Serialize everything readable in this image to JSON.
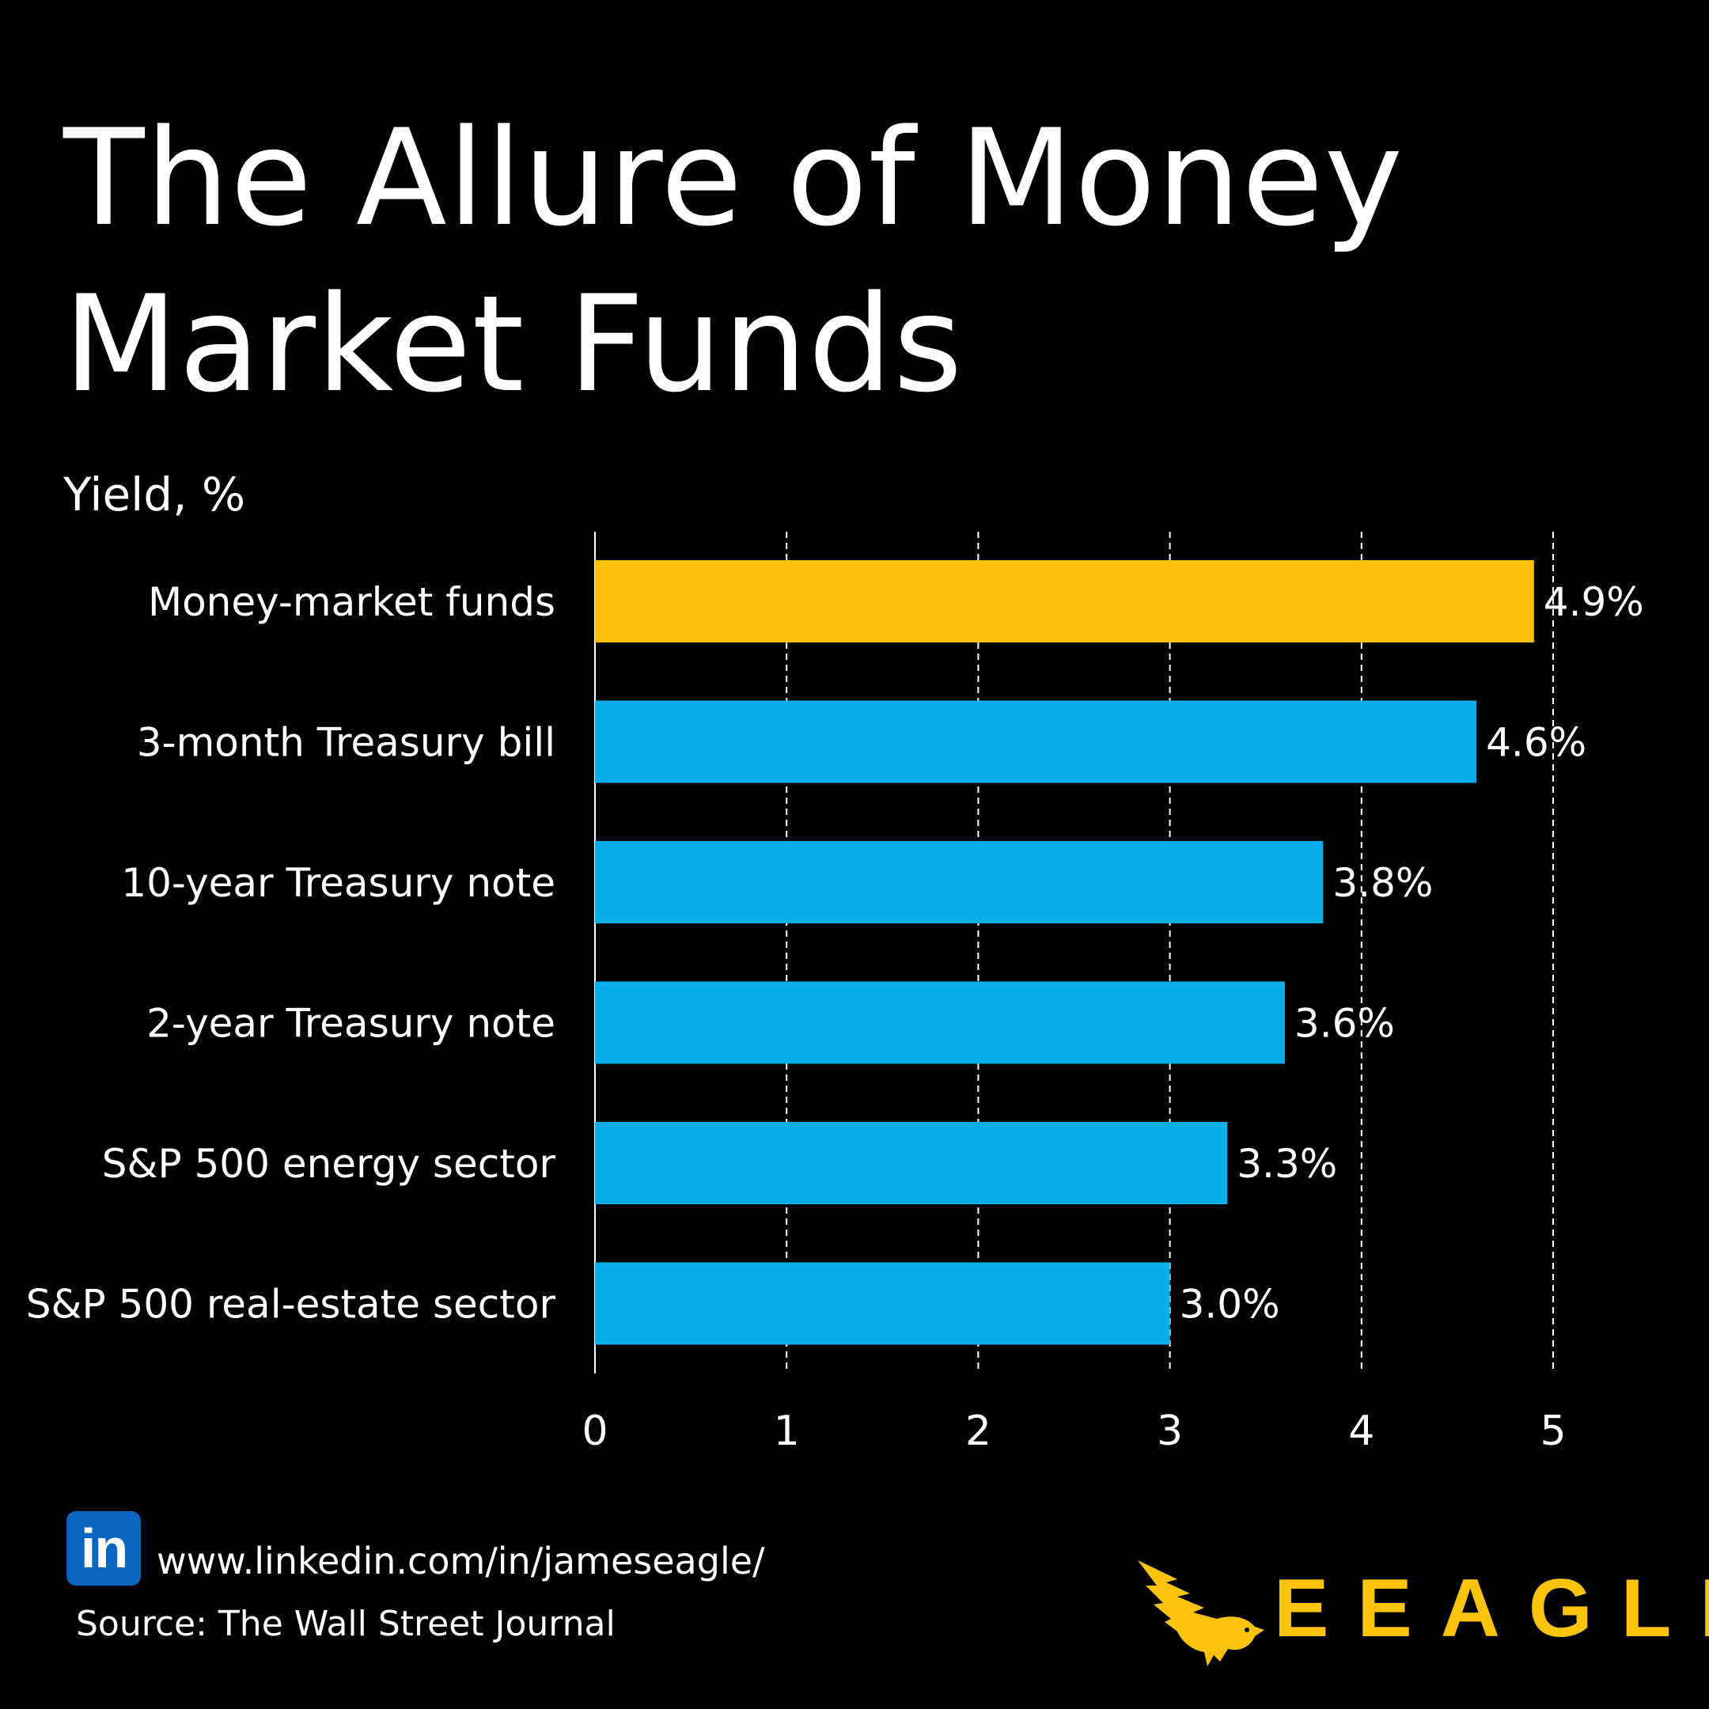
{
  "title": "The Allure of Money Market Funds",
  "subtitle": "Yield, %",
  "chart_data": {
    "type": "bar",
    "orientation": "horizontal",
    "categories": [
      "Money-market funds",
      "3-month Treasury bill",
      "10-year Treasury note",
      "2-year Treasury note",
      "S&P 500 energy sector",
      "S&P 500 real-estate sector"
    ],
    "values": [
      4.9,
      4.6,
      3.8,
      3.6,
      3.3,
      3.0
    ],
    "value_labels": [
      "4.9%",
      "4.6%",
      "3.8%",
      "3.6%",
      "3.3%",
      "3.0%"
    ],
    "colors": [
      "#fbc20a",
      "#0aaeeb",
      "#0aaeeb",
      "#0aaeeb",
      "#0aaeeb",
      "#0aaeeb"
    ],
    "xlim": [
      0,
      5
    ],
    "xticks": [
      "0",
      "1",
      "2",
      "3",
      "4",
      "5"
    ],
    "grid": "vertical dashed",
    "title": "The Allure of Money Market Funds",
    "xlabel": "",
    "ylabel": "Yield, %"
  },
  "footer": {
    "linkedin_icon": "linkedin-icon",
    "linkedin_badge": "in",
    "url": "www.linkedin.com/in/jameseagle/",
    "source": "Source: The Wall Street Journal"
  },
  "brand": {
    "name": "EEAGLI",
    "logo_icon": "eagle-logo-icon",
    "color": "#fbc40a"
  }
}
